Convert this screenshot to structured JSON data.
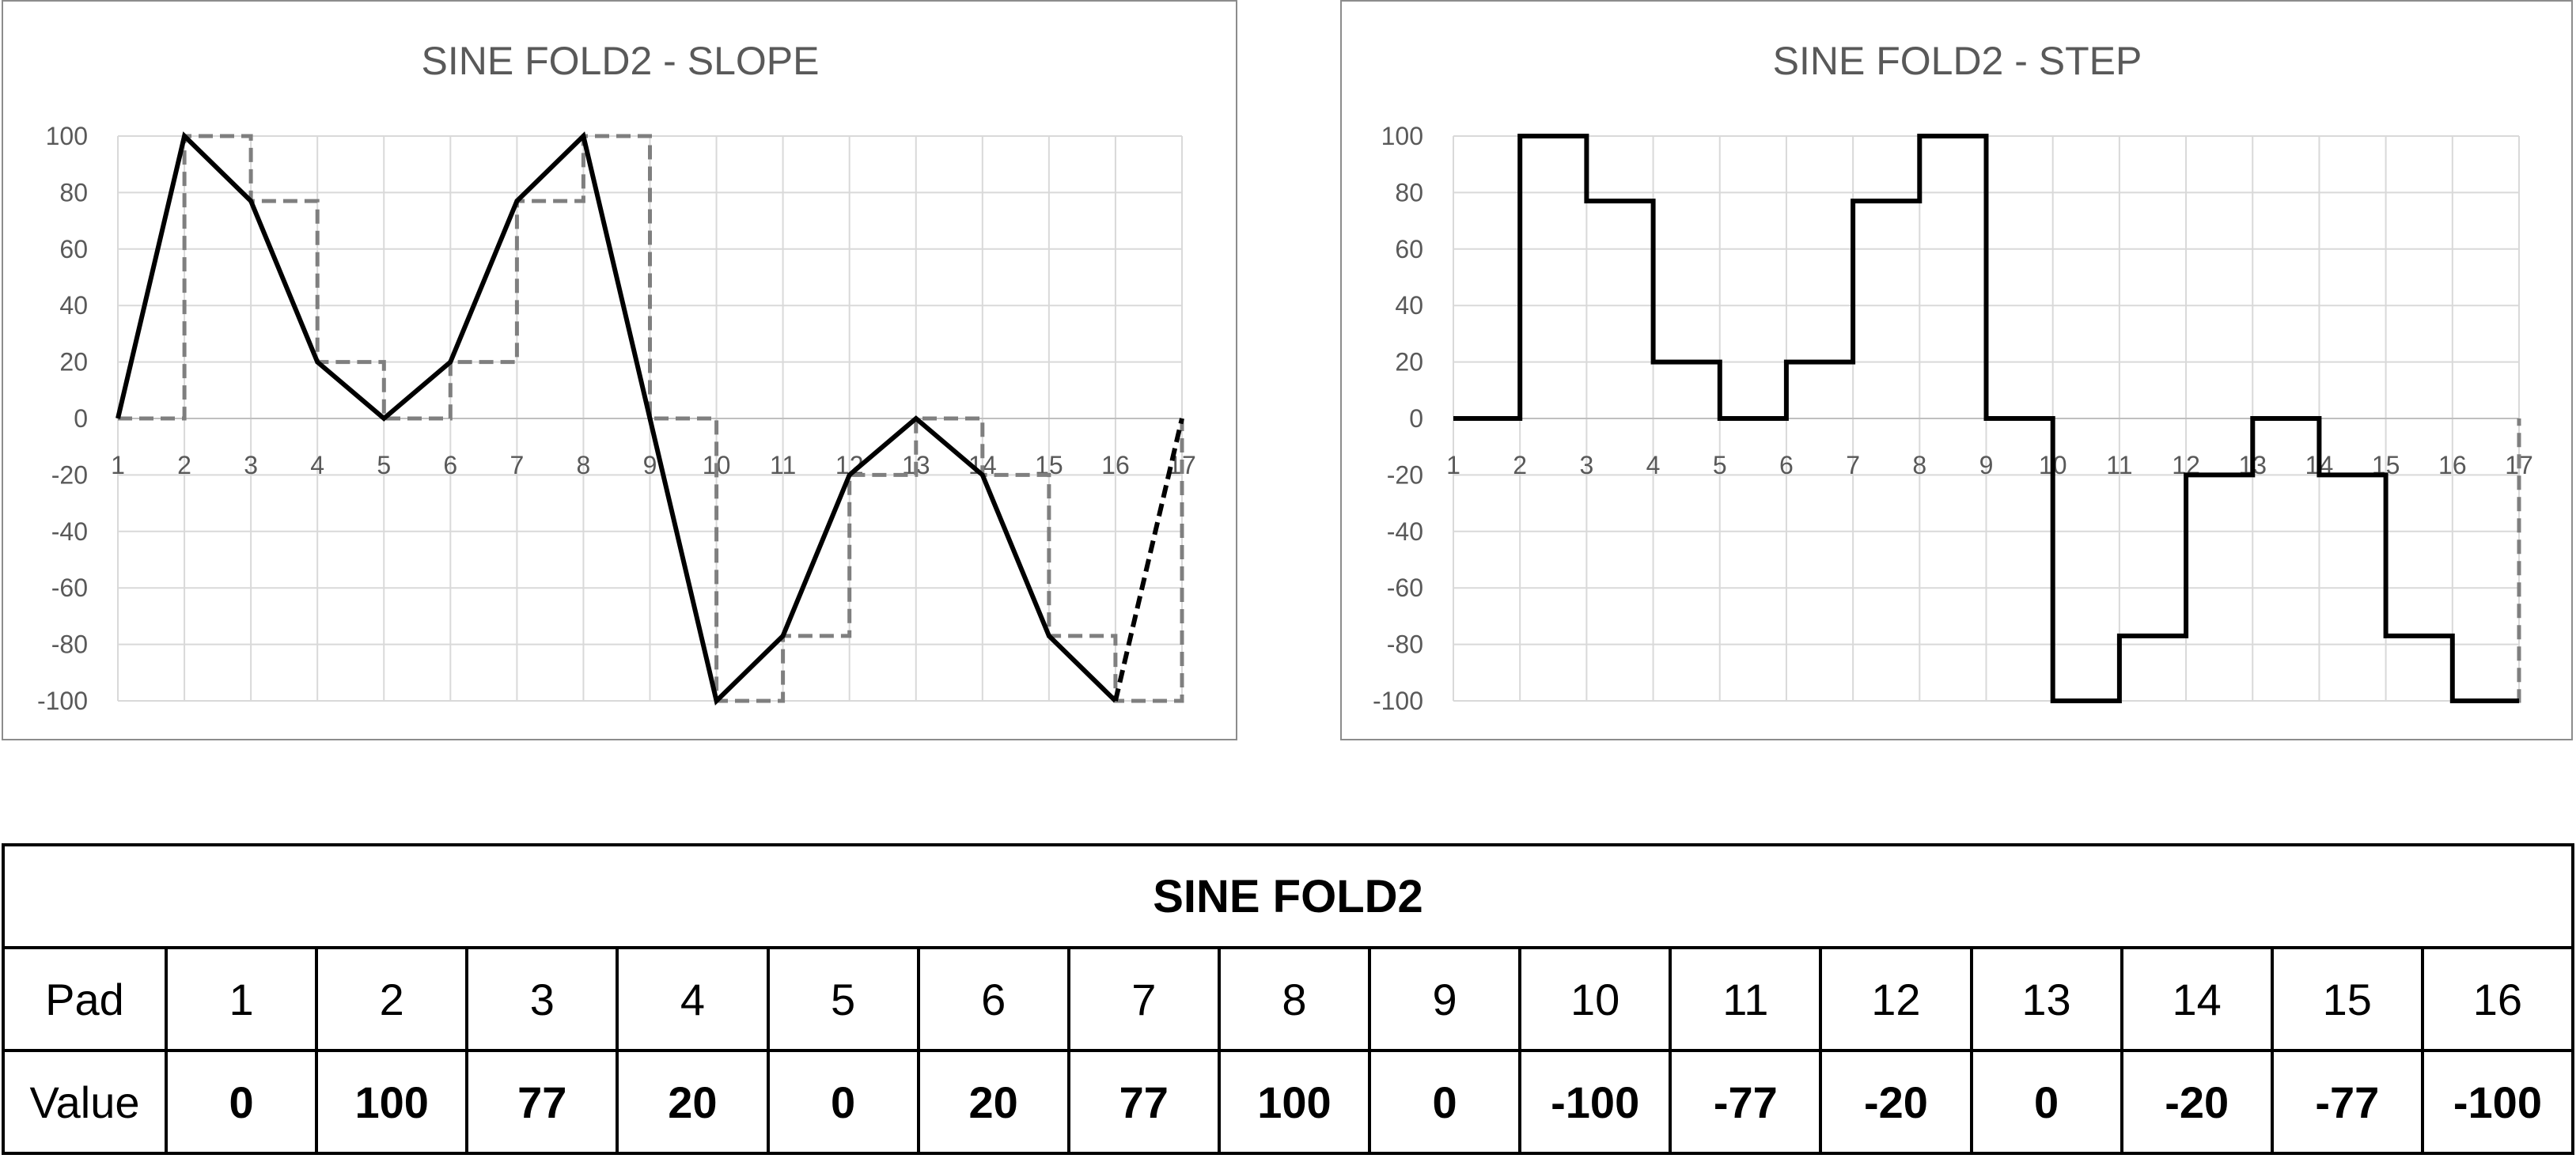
{
  "chart_data": [
    {
      "type": "line",
      "title": "SINE FOLD2 - SLOPE",
      "x_ticks": [
        1,
        2,
        3,
        4,
        5,
        6,
        7,
        8,
        9,
        10,
        11,
        12,
        13,
        14,
        15,
        16,
        17
      ],
      "y_ticks": [
        100,
        80,
        60,
        40,
        20,
        0,
        -20,
        -40,
        -60,
        -80,
        -100
      ],
      "xlim": [
        1,
        17
      ],
      "ylim": [
        -100,
        100
      ],
      "grid": true,
      "series": [
        {
          "style": "solid",
          "color": "#000000",
          "x": [
            1,
            2,
            3,
            4,
            5,
            6,
            7,
            8,
            9,
            10,
            11,
            12,
            13,
            14,
            15,
            16
          ],
          "y": [
            0,
            100,
            77,
            20,
            0,
            20,
            77,
            100,
            0,
            -100,
            -77,
            -20,
            0,
            -20,
            -77,
            -100
          ]
        },
        {
          "style": "dashed",
          "color": "#000000",
          "x": [
            16,
            17
          ],
          "y": [
            -100,
            0
          ]
        },
        {
          "style": "dashed-step",
          "color": "#7f7f7f",
          "x": [
            1,
            2,
            3,
            4,
            5,
            6,
            7,
            8,
            9,
            10,
            11,
            12,
            13,
            14,
            15,
            16,
            17
          ],
          "y": [
            0,
            100,
            77,
            20,
            0,
            20,
            77,
            100,
            0,
            -100,
            -77,
            -20,
            0,
            -20,
            -77,
            -100,
            0
          ]
        }
      ]
    },
    {
      "type": "line",
      "title": "SINE FOLD2 - STEP",
      "x_ticks": [
        1,
        2,
        3,
        4,
        5,
        6,
        7,
        8,
        9,
        10,
        11,
        12,
        13,
        14,
        15,
        16,
        17
      ],
      "y_ticks": [
        100,
        80,
        60,
        40,
        20,
        0,
        -20,
        -40,
        -60,
        -80,
        -100
      ],
      "xlim": [
        1,
        17
      ],
      "ylim": [
        -100,
        100
      ],
      "grid": true,
      "series": [
        {
          "style": "solid-step",
          "color": "#000000",
          "x": [
            1,
            2,
            3,
            4,
            5,
            6,
            7,
            8,
            9,
            10,
            11,
            12,
            13,
            14,
            15,
            16
          ],
          "y": [
            0,
            100,
            77,
            20,
            0,
            20,
            77,
            100,
            0,
            -100,
            -77,
            -20,
            0,
            -20,
            -77,
            -100
          ]
        },
        {
          "style": "dashed-step",
          "color": "#7f7f7f",
          "x": [
            16,
            17
          ],
          "y": [
            -100,
            0
          ]
        }
      ]
    }
  ],
  "table": {
    "title": "SINE FOLD2",
    "pad_label": "Pad",
    "value_label": "Value",
    "pads": [
      "1",
      "2",
      "3",
      "4",
      "5",
      "6",
      "7",
      "8",
      "9",
      "10",
      "11",
      "12",
      "13",
      "14",
      "15",
      "16"
    ],
    "values": [
      "0",
      "100",
      "77",
      "20",
      "0",
      "20",
      "77",
      "100",
      "0",
      "-100",
      "-77",
      "-20",
      "0",
      "-20",
      "-77",
      "-100"
    ]
  }
}
